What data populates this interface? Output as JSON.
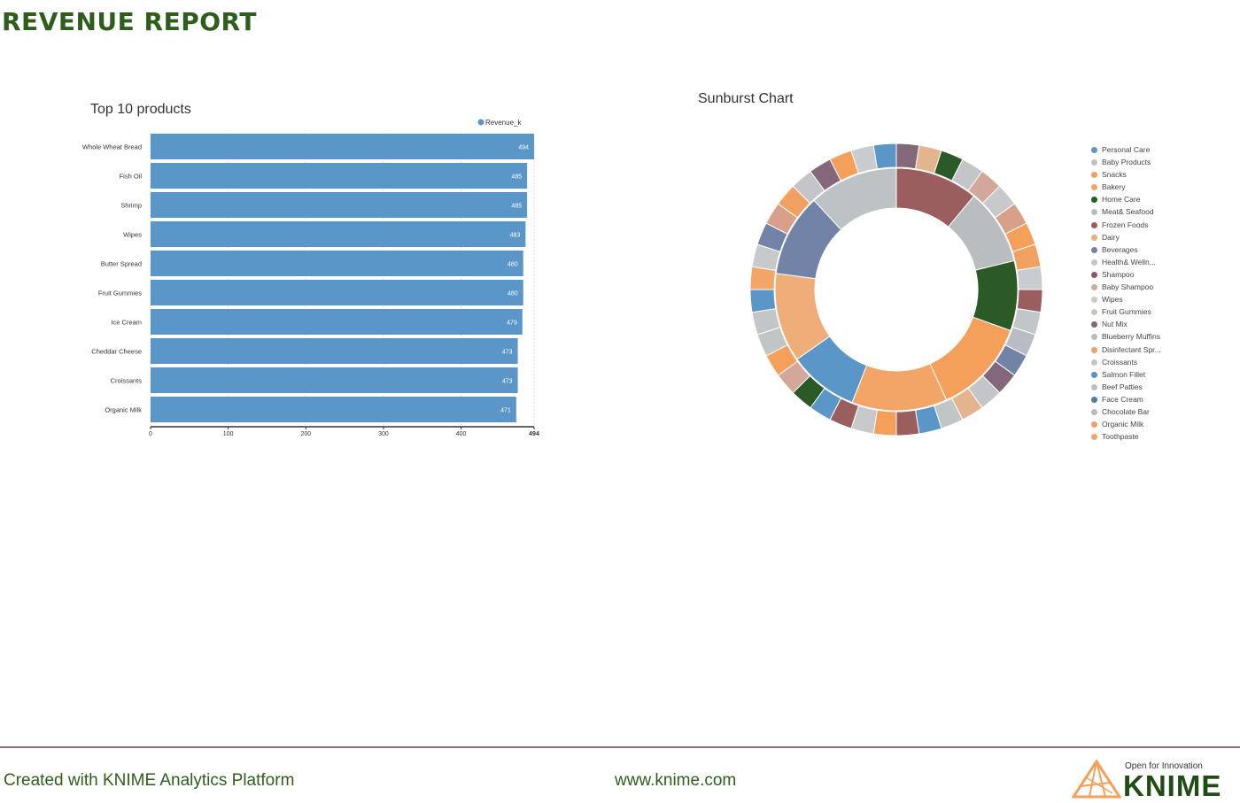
{
  "report": {
    "title": "REVENUE REPORT"
  },
  "colors": {
    "title_green": "#2e5e1b",
    "bar_blue": "#5b96c8",
    "footer_rule": "#8a6f74",
    "knime_orange": "#f5a05a",
    "knime_dark": "#1f4d14"
  },
  "chart_data": [
    {
      "type": "bar",
      "orientation": "horizontal",
      "title": "Top 10 products",
      "categories": [
        "Whole Wheat Bread",
        "Fish Oil",
        "Shrimp",
        "Wipes",
        "Butter Spread",
        "Fruit Gummies",
        "Ice Cream",
        "Cheddar Cheese",
        "Croissants",
        "Organic Milk"
      ],
      "series": [
        {
          "name": "Revenue_k",
          "values": [
            494,
            485,
            485,
            483,
            480,
            480,
            479,
            473,
            473,
            471
          ],
          "color": "#5b96c8"
        }
      ],
      "x_ticks": [
        "0",
        "100",
        "200",
        "300",
        "400",
        "494"
      ],
      "xlim": [
        0,
        494
      ],
      "legend": "top-right",
      "grid": true
    },
    {
      "type": "sunburst",
      "title": "Sunburst Chart",
      "legend": "right",
      "legend_entries": [
        {
          "name": "Personal Care",
          "color": "#5b96c8"
        },
        {
          "name": "Baby Products",
          "color": "#bdc3c4"
        },
        {
          "name": "Snacks",
          "color": "#f5a05a"
        },
        {
          "name": "Bakery",
          "color": "#f2a567"
        },
        {
          "name": "Home Care",
          "color": "#2b5a27"
        },
        {
          "name": "Meat& Seafood",
          "color": "#b9bdbf"
        },
        {
          "name": "Frozen Foods",
          "color": "#9a5e5e"
        },
        {
          "name": "Dairy",
          "color": "#efad78"
        },
        {
          "name": "Beverages",
          "color": "#7383a8"
        },
        {
          "name": "Health& Welln...",
          "color": "#c0c5c6"
        },
        {
          "name": "Shampoo",
          "color": "#8c5a5c"
        },
        {
          "name": "Baby Shampoo",
          "color": "#d2a89a"
        },
        {
          "name": "Wipes",
          "color": "#c7c9cb"
        },
        {
          "name": "Fruit Gummies",
          "color": "#c2c6c8"
        },
        {
          "name": "Nut Mix",
          "color": "#85677a"
        },
        {
          "name": "Blueberry Muffins",
          "color": "#b8bcc4"
        },
        {
          "name": "Disinfectant Spr...",
          "color": "#f0a060"
        },
        {
          "name": "Croissants",
          "color": "#c3c6c8"
        },
        {
          "name": "Salmon Fillet",
          "color": "#5592cc"
        },
        {
          "name": "Beef Patties",
          "color": "#bbbfc1"
        },
        {
          "name": "Face Cream",
          "color": "#4a7fb0"
        },
        {
          "name": "Chocolate Bar",
          "color": "#b9bcbf"
        },
        {
          "name": "Organic Milk",
          "color": "#f5a05a"
        },
        {
          "name": "Toothpaste",
          "color": "#f3a464"
        }
      ],
      "inner_ring": [
        {
          "value": 13,
          "color": "#9a5e5e"
        },
        {
          "value": 12,
          "color": "#b9bdbf"
        },
        {
          "value": 11,
          "color": "#2b5a27"
        },
        {
          "value": 15,
          "color": "#f5a05a"
        },
        {
          "value": 15,
          "color": "#f2a567"
        },
        {
          "value": 11,
          "color": "#5b96c8"
        },
        {
          "value": 14,
          "color": "#efad78"
        },
        {
          "value": 13,
          "color": "#7383a8"
        },
        {
          "value": 14,
          "color": "#bdc3c4"
        }
      ],
      "outer_ring": [
        {
          "value": 4,
          "color": "#85677a"
        },
        {
          "value": 4,
          "color": "#e3b48e"
        },
        {
          "value": 4,
          "color": "#2b5a27"
        },
        {
          "value": 4,
          "color": "#c3c6c8"
        },
        {
          "value": 4,
          "color": "#d2a89a"
        },
        {
          "value": 4,
          "color": "#c7c9cb"
        },
        {
          "value": 4,
          "color": "#d8a08a"
        },
        {
          "value": 4,
          "color": "#f5a05a"
        },
        {
          "value": 4,
          "color": "#f0a060"
        },
        {
          "value": 4,
          "color": "#c8ccce"
        },
        {
          "value": 4,
          "color": "#9a5e5e"
        },
        {
          "value": 4,
          "color": "#c2c6c8"
        },
        {
          "value": 4,
          "color": "#b8bcc4"
        },
        {
          "value": 4,
          "color": "#7383a8"
        },
        {
          "value": 4,
          "color": "#85677a"
        },
        {
          "value": 4,
          "color": "#c3c6c8"
        },
        {
          "value": 4,
          "color": "#e3b48e"
        },
        {
          "value": 4,
          "color": "#c0c5c6"
        },
        {
          "value": 4,
          "color": "#5b96c8"
        },
        {
          "value": 4,
          "color": "#9a5e5e"
        },
        {
          "value": 4,
          "color": "#f5a05a"
        },
        {
          "value": 4,
          "color": "#c7c9cb"
        },
        {
          "value": 4,
          "color": "#9a5e5e"
        },
        {
          "value": 4,
          "color": "#5b96c8"
        },
        {
          "value": 4,
          "color": "#2b5a27"
        },
        {
          "value": 4,
          "color": "#d2a89a"
        },
        {
          "value": 4,
          "color": "#f5a05a"
        },
        {
          "value": 4,
          "color": "#c0c5c6"
        },
        {
          "value": 4,
          "color": "#c3c6c8"
        },
        {
          "value": 4,
          "color": "#5b96c8"
        },
        {
          "value": 4,
          "color": "#f2a567"
        },
        {
          "value": 4,
          "color": "#c7c9cb"
        },
        {
          "value": 4,
          "color": "#7383a8"
        },
        {
          "value": 4,
          "color": "#d8a08a"
        },
        {
          "value": 4,
          "color": "#f0a060"
        },
        {
          "value": 4,
          "color": "#c2c6c8"
        },
        {
          "value": 4,
          "color": "#85677a"
        },
        {
          "value": 4,
          "color": "#f5a05a"
        },
        {
          "value": 4,
          "color": "#c8ccce"
        },
        {
          "value": 4,
          "color": "#5b96c8"
        }
      ]
    }
  ],
  "footer": {
    "left": "Created with KNIME Analytics Platform",
    "center": "www.knime.com",
    "brand_tagline": "Open for Innovation",
    "brand_name": "KNIME"
  }
}
